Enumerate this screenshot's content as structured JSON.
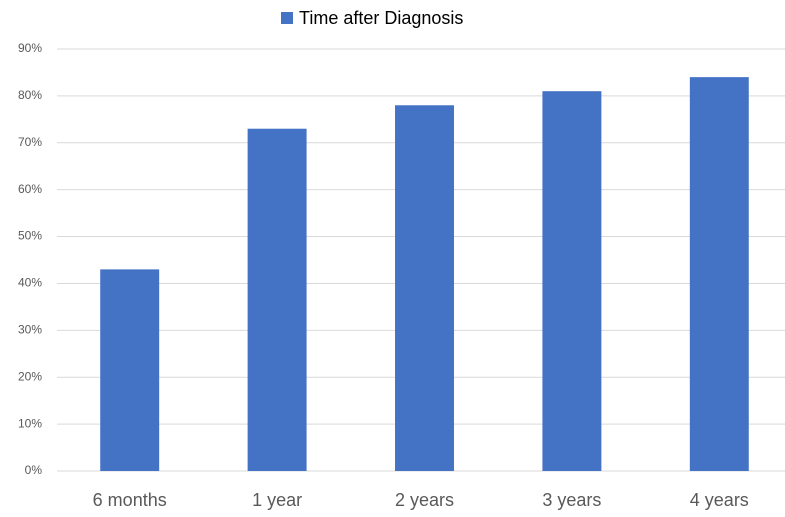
{
  "chart_data": {
    "type": "bar",
    "legend": "Time after Diagnosis",
    "categories": [
      "6 months",
      "1 year",
      "2 years",
      "3 years",
      "4 years"
    ],
    "values": [
      43,
      73,
      78,
      81,
      84
    ],
    "color": "#4472c4",
    "ylim": [
      0,
      90
    ],
    "yticks": [
      {
        "value": 0,
        "label": "0%"
      },
      {
        "value": 10,
        "label": "10%"
      },
      {
        "value": 20,
        "label": "20%"
      },
      {
        "value": 30,
        "label": "30%"
      },
      {
        "value": 40,
        "label": "40%"
      },
      {
        "value": 50,
        "label": "50%"
      },
      {
        "value": 60,
        "label": "60%"
      },
      {
        "value": 70,
        "label": "70%"
      },
      {
        "value": 80,
        "label": "80%"
      },
      {
        "value": 90,
        "label": "90%"
      }
    ],
    "grid": true,
    "legend_position": "top"
  }
}
